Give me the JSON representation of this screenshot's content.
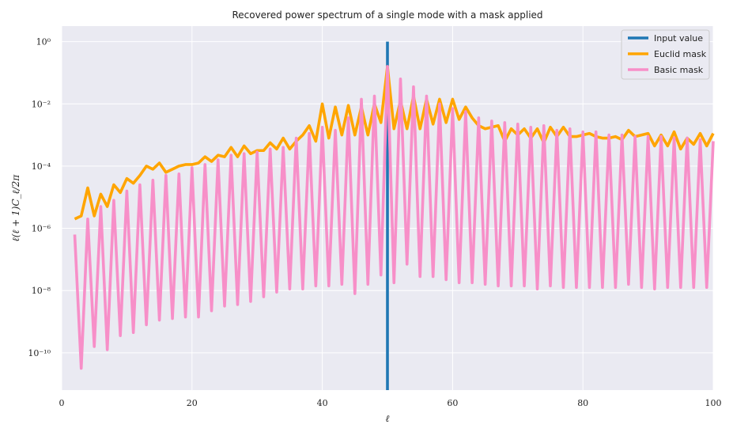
{
  "chart_data": {
    "type": "line",
    "title": "Recovered power spectrum of a single mode with a mask applied",
    "xlabel": "ℓ",
    "ylabel": "ℓ(ℓ + 1)C_ℓ/2π",
    "xlim": [
      0,
      100
    ],
    "ylim_log10": [
      -11.2,
      0.5
    ],
    "y_scale": "log",
    "grid": true,
    "legend_position": "top-right",
    "x_ticks": [
      0,
      20,
      40,
      60,
      80,
      100
    ],
    "y_ticks": [
      {
        "exp": 0,
        "label": "10⁰"
      },
      {
        "exp": -2,
        "label": "10⁻²"
      },
      {
        "exp": -4,
        "label": "10⁻⁴"
      },
      {
        "exp": -6,
        "label": "10⁻⁶"
      },
      {
        "exp": -8,
        "label": "10⁻⁸"
      },
      {
        "exp": -10,
        "label": "10⁻¹⁰"
      }
    ],
    "x": [
      2,
      3,
      4,
      5,
      6,
      7,
      8,
      9,
      10,
      11,
      12,
      13,
      14,
      15,
      16,
      17,
      18,
      19,
      20,
      21,
      22,
      23,
      24,
      25,
      26,
      27,
      28,
      29,
      30,
      31,
      32,
      33,
      34,
      35,
      36,
      37,
      38,
      39,
      40,
      41,
      42,
      43,
      44,
      45,
      46,
      47,
      48,
      49,
      50,
      51,
      52,
      53,
      54,
      55,
      56,
      57,
      58,
      59,
      60,
      61,
      62,
      63,
      64,
      65,
      66,
      67,
      68,
      69,
      70,
      71,
      72,
      73,
      74,
      75,
      76,
      77,
      78,
      79,
      80,
      81,
      82,
      83,
      84,
      85,
      86,
      87,
      88,
      89,
      90,
      91,
      92,
      93,
      94,
      95,
      96,
      97,
      98,
      99,
      100
    ],
    "series": [
      {
        "name": "Input value",
        "color": "#1f77b4",
        "x": [
          50,
          50
        ],
        "log10_y": [
          0,
          -11.2
        ]
      },
      {
        "name": "Euclid mask",
        "color": "#ffa500",
        "log10_y": [
          -5.7,
          -5.6,
          -4.7,
          -5.6,
          -4.9,
          -5.3,
          -4.6,
          -4.85,
          -4.4,
          -4.55,
          -4.3,
          -4.0,
          -4.1,
          -3.9,
          -4.2,
          -4.1,
          -4.0,
          -3.95,
          -3.95,
          -3.9,
          -3.7,
          -3.85,
          -3.65,
          -3.7,
          -3.4,
          -3.7,
          -3.35,
          -3.6,
          -3.5,
          -3.5,
          -3.25,
          -3.45,
          -3.1,
          -3.45,
          -3.2,
          -3.0,
          -2.7,
          -3.2,
          -2.0,
          -3.1,
          -2.1,
          -3.0,
          -2.05,
          -3.0,
          -2.1,
          -3.0,
          -2.0,
          -2.6,
          -0.8,
          -2.8,
          -1.9,
          -2.8,
          -1.75,
          -2.8,
          -1.85,
          -2.65,
          -1.85,
          -2.6,
          -1.85,
          -2.5,
          -2.1,
          -2.45,
          -2.7,
          -2.8,
          -2.75,
          -2.7,
          -3.2,
          -2.8,
          -3.0,
          -2.8,
          -3.1,
          -2.8,
          -3.25,
          -2.75,
          -3.05,
          -2.75,
          -3.05,
          -3.05,
          -3.0,
          -2.95,
          -3.05,
          -3.1,
          -3.1,
          -3.05,
          -3.15,
          -2.85,
          -3.05,
          -3.0,
          -2.95,
          -3.35,
          -3.0,
          -3.35,
          -2.9,
          -3.45,
          -3.1,
          -3.3,
          -2.95,
          -3.35,
          -2.95,
          -3.25,
          -3.2
        ]
      },
      {
        "name": "Basic mask",
        "color": "#f78fc8",
        "log10_y": [
          -6.2,
          -10.5,
          -5.7,
          -9.8,
          -5.3,
          -9.9,
          -5.1,
          -9.45,
          -4.8,
          -9.35,
          -4.6,
          -9.1,
          -4.45,
          -8.95,
          -4.3,
          -8.9,
          -4.25,
          -8.85,
          -4.05,
          -8.85,
          -3.95,
          -8.65,
          -3.8,
          -8.5,
          -3.65,
          -8.45,
          -3.6,
          -8.35,
          -3.55,
          -8.2,
          -3.45,
          -8.05,
          -3.4,
          -7.95,
          -3.1,
          -7.95,
          -2.95,
          -7.85,
          -2.75,
          -7.85,
          -2.85,
          -7.8,
          -2.45,
          -8.1,
          -1.85,
          -7.8,
          -1.75,
          -7.5,
          -0.8,
          -7.75,
          -1.2,
          -7.15,
          -1.45,
          -7.55,
          -1.75,
          -7.55,
          -2.0,
          -7.65,
          -2.15,
          -7.75,
          -2.25,
          -7.75,
          -2.45,
          -7.8,
          -2.55,
          -7.85,
          -2.6,
          -7.85,
          -2.65,
          -7.85,
          -2.75,
          -7.95,
          -2.7,
          -7.85,
          -2.85,
          -7.9,
          -2.8,
          -7.9,
          -2.9,
          -7.9,
          -2.9,
          -7.9,
          -3.0,
          -7.9,
          -3.0,
          -7.8,
          -3.05,
          -7.9,
          -3.05,
          -7.95,
          -3.05,
          -7.9,
          -3.1,
          -7.9,
          -3.1,
          -7.9,
          -3.15,
          -7.9,
          -3.2,
          -7.95,
          -5.6
        ]
      }
    ]
  }
}
